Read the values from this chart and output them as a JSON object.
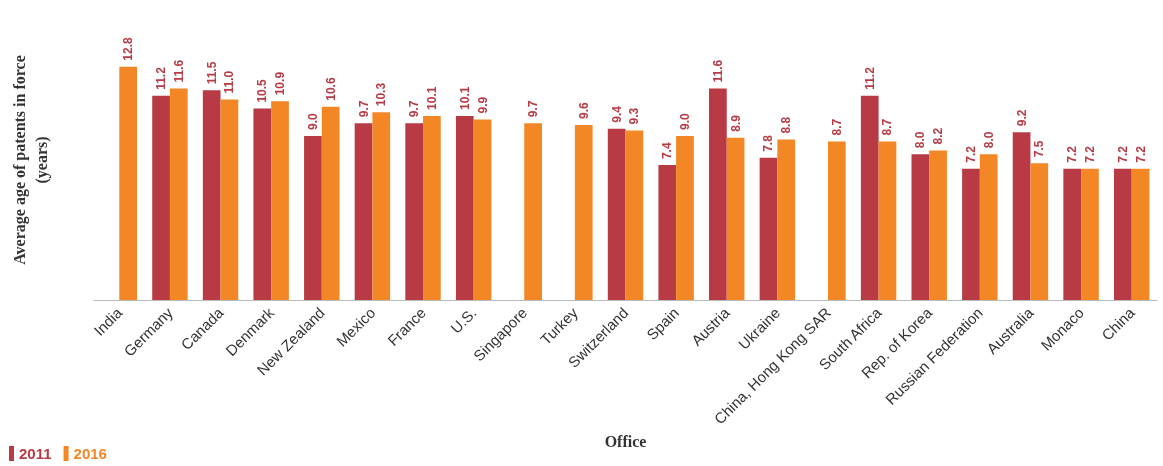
{
  "chart_data": {
    "type": "bar",
    "xlabel": "Office",
    "ylabel": "Average age of patents in force\n(years)",
    "categories": [
      "India",
      "Germany",
      "Canada",
      "Denmark",
      "New Zealand",
      "Mexico",
      "France",
      "U.S.",
      "Singapore",
      "Turkey",
      "Switzerland",
      "Spain",
      "Austria",
      "Ukraine",
      "China, Hong Kong SAR",
      "South Africa",
      "Rep. of Korea",
      "Russian Federation",
      "Australia",
      "Monaco",
      "China"
    ],
    "series": [
      {
        "name": "2011",
        "color": "#b73a44",
        "values": [
          null,
          11.2,
          11.5,
          10.5,
          9.0,
          9.7,
          9.7,
          10.1,
          null,
          null,
          9.4,
          7.4,
          11.6,
          7.8,
          null,
          11.2,
          8.0,
          7.2,
          9.2,
          7.2,
          7.2
        ],
        "value_labels": [
          null,
          "11.2",
          "11.5",
          "10.5",
          "9.0",
          "9.7",
          "9.7",
          "10.1",
          null,
          null,
          "9.4",
          "7.4",
          "11.6",
          "7.8",
          null,
          "11.2",
          "8.0",
          "7.2",
          "9.2",
          "7.2",
          "7.2"
        ]
      },
      {
        "name": "2016",
        "color": "#f38625",
        "values": [
          12.8,
          11.6,
          11.0,
          10.9,
          10.6,
          10.3,
          10.1,
          9.9,
          9.7,
          9.6,
          9.3,
          9.0,
          8.9,
          8.8,
          8.7,
          8.7,
          8.2,
          8.0,
          7.5,
          7.2,
          7.2
        ],
        "value_labels": [
          "12.8",
          "11.6",
          "11.0",
          "10.9",
          "10.6",
          "10.3",
          "10.1",
          "9.9",
          "9.7",
          "9.6",
          "9.3",
          "9.0",
          "8.9",
          "8.8",
          "8.7",
          "8.7",
          "8.2",
          "8.0",
          "7.5",
          "7.2",
          "7.2"
        ]
      }
    ],
    "legend": "bottom left",
    "grid": false
  }
}
